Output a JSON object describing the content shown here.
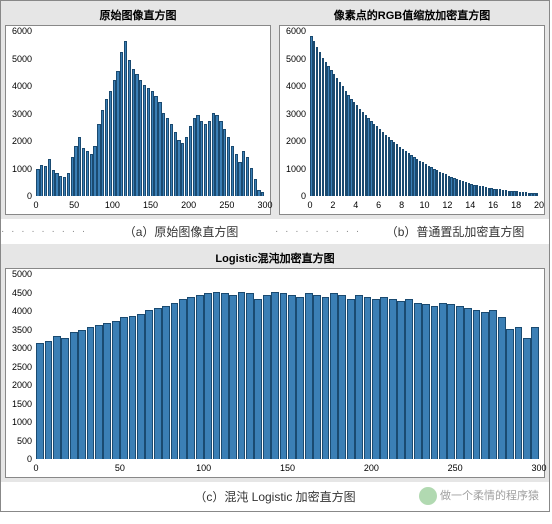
{
  "chart_a": {
    "type": "histogram",
    "title": "原始图像直方图",
    "caption": "（a）原始图像直方图",
    "bar_color": "#3b7fb5",
    "bar_edge": "#1a4a70",
    "background": "#ffffff",
    "panel_bg": "#e6e6e6",
    "ylim": [
      0,
      6000
    ],
    "yticks": [
      0,
      1000,
      2000,
      3000,
      4000,
      5000,
      6000
    ],
    "xlim": [
      0,
      300
    ],
    "xticks": [
      0,
      50,
      100,
      150,
      200,
      250,
      300
    ],
    "values": [
      950,
      1100,
      1050,
      1300,
      900,
      800,
      700,
      650,
      800,
      1400,
      1800,
      2100,
      1700,
      1600,
      1500,
      1800,
      2600,
      3100,
      3500,
      3800,
      4200,
      4500,
      5200,
      5600,
      4900,
      4600,
      4400,
      4200,
      4000,
      3900,
      3800,
      3600,
      3400,
      3000,
      2800,
      2600,
      2300,
      2000,
      1900,
      2100,
      2500,
      2800,
      2900,
      2700,
      2600,
      2700,
      3000,
      2900,
      2700,
      2400,
      2100,
      1800,
      1500,
      1200,
      1600,
      1400,
      1000,
      600,
      200,
      100
    ]
  },
  "chart_b": {
    "type": "histogram",
    "title": "像素点的RGB值缩放加密直方图",
    "caption": "（b）普通置乱加密直方图",
    "bar_color": "#3b7fb5",
    "bar_edge": "#1a4a70",
    "background": "#ffffff",
    "panel_bg": "#e6e6e6",
    "ylim": [
      0,
      6000
    ],
    "yticks": [
      0,
      1000,
      2000,
      3000,
      4000,
      5000,
      6000
    ],
    "xlim": [
      0,
      20
    ],
    "xticks": [
      0,
      2,
      4,
      6,
      8,
      10,
      12,
      14,
      16,
      18,
      20
    ],
    "values": [
      5800,
      5600,
      5400,
      5200,
      5000,
      4850,
      4700,
      4550,
      4400,
      4250,
      4100,
      3950,
      3800,
      3650,
      3500,
      3380,
      3260,
      3140,
      3020,
      2900,
      2800,
      2700,
      2600,
      2500,
      2400,
      2300,
      2200,
      2100,
      2000,
      1920,
      1840,
      1760,
      1680,
      1600,
      1530,
      1460,
      1390,
      1320,
      1250,
      1190,
      1130,
      1070,
      1010,
      950,
      900,
      850,
      800,
      750,
      700,
      660,
      620,
      580,
      540,
      500,
      470,
      440,
      410,
      380,
      350,
      330,
      310,
      290,
      270,
      250,
      235,
      220,
      205,
      190,
      175,
      160,
      150,
      140,
      130,
      120,
      110,
      100,
      90,
      80,
      70,
      60
    ]
  },
  "chart_c": {
    "type": "histogram",
    "title": "Logistic混沌加密直方图",
    "caption": "（c）混沌 Logistic 加密直方图",
    "bar_color": "#3b7fb5",
    "bar_edge": "#1a4a70",
    "background": "#ffffff",
    "panel_bg": "#e6e6e6",
    "ylim": [
      0,
      5000
    ],
    "yticks": [
      0,
      500,
      1000,
      1500,
      2000,
      2500,
      3000,
      3500,
      4000,
      4500,
      5000
    ],
    "xlim": [
      0,
      300
    ],
    "xticks": [
      0,
      50,
      100,
      150,
      200,
      250,
      300
    ],
    "values": [
      3100,
      3150,
      3300,
      3250,
      3400,
      3450,
      3550,
      3600,
      3650,
      3700,
      3800,
      3850,
      3900,
      4000,
      4050,
      4100,
      4200,
      4300,
      4350,
      4400,
      4450,
      4500,
      4450,
      4400,
      4500,
      4450,
      4300,
      4400,
      4500,
      4450,
      4400,
      4350,
      4450,
      4400,
      4350,
      4450,
      4400,
      4300,
      4400,
      4350,
      4300,
      4350,
      4300,
      4250,
      4300,
      4200,
      4150,
      4100,
      4200,
      4150,
      4100,
      4050,
      4000,
      3950,
      4000,
      3800,
      3500,
      3550,
      3250,
      3550
    ]
  },
  "watermark": "做一个柔情的程序猿",
  "caption_dots": "· · · · · · · · ·"
}
